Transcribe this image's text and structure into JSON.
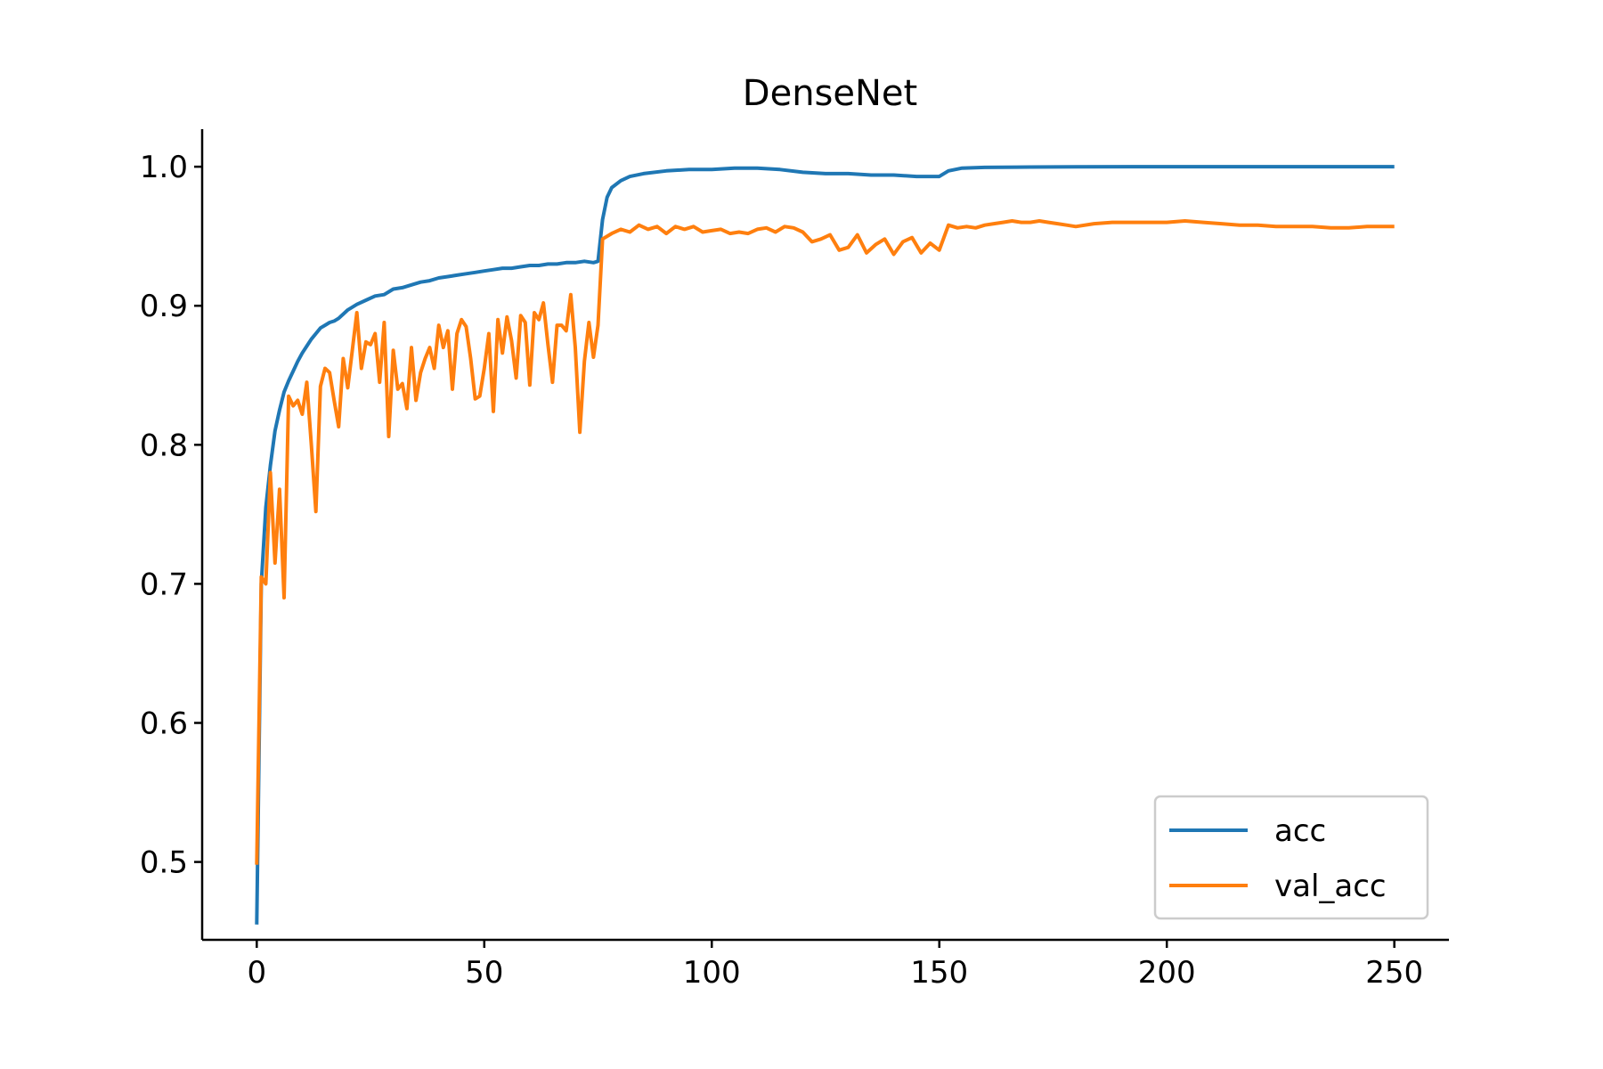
{
  "chart_data": {
    "type": "line",
    "title": "DenseNet",
    "xlabel": "",
    "ylabel": "",
    "xlim": [
      -12,
      262
    ],
    "ylim": [
      0.444,
      1.027
    ],
    "x_ticks": [
      0,
      50,
      100,
      150,
      200,
      250
    ],
    "x_tick_labels": [
      "0",
      "50",
      "100",
      "150",
      "200",
      "250"
    ],
    "y_ticks": [
      0.5,
      0.6,
      0.7,
      0.8,
      0.9,
      1.0
    ],
    "y_tick_labels": [
      "0.5",
      "0.6",
      "0.7",
      "0.8",
      "0.9",
      "1.0"
    ],
    "grid": false,
    "legend": {
      "position": "lower-right"
    },
    "series": [
      {
        "name": "acc",
        "color": "#1f77b4",
        "points": [
          [
            0,
            0.455
          ],
          [
            1,
            0.7
          ],
          [
            2,
            0.755
          ],
          [
            3,
            0.785
          ],
          [
            4,
            0.81
          ],
          [
            5,
            0.825
          ],
          [
            6,
            0.838
          ],
          [
            7,
            0.846
          ],
          [
            8,
            0.853
          ],
          [
            9,
            0.86
          ],
          [
            10,
            0.866
          ],
          [
            11,
            0.871
          ],
          [
            12,
            0.876
          ],
          [
            13,
            0.88
          ],
          [
            14,
            0.884
          ],
          [
            15,
            0.886
          ],
          [
            16,
            0.888
          ],
          [
            17,
            0.889
          ],
          [
            18,
            0.891
          ],
          [
            19,
            0.894
          ],
          [
            20,
            0.897
          ],
          [
            22,
            0.901
          ],
          [
            24,
            0.904
          ],
          [
            26,
            0.907
          ],
          [
            28,
            0.908
          ],
          [
            30,
            0.912
          ],
          [
            32,
            0.913
          ],
          [
            34,
            0.915
          ],
          [
            36,
            0.917
          ],
          [
            38,
            0.918
          ],
          [
            40,
            0.92
          ],
          [
            42,
            0.921
          ],
          [
            44,
            0.922
          ],
          [
            46,
            0.923
          ],
          [
            48,
            0.924
          ],
          [
            50,
            0.925
          ],
          [
            52,
            0.926
          ],
          [
            54,
            0.927
          ],
          [
            56,
            0.927
          ],
          [
            58,
            0.928
          ],
          [
            60,
            0.929
          ],
          [
            62,
            0.929
          ],
          [
            64,
            0.93
          ],
          [
            66,
            0.93
          ],
          [
            68,
            0.931
          ],
          [
            70,
            0.931
          ],
          [
            72,
            0.932
          ],
          [
            74,
            0.931
          ],
          [
            75,
            0.932
          ],
          [
            76,
            0.962
          ],
          [
            77,
            0.978
          ],
          [
            78,
            0.985
          ],
          [
            80,
            0.99
          ],
          [
            82,
            0.993
          ],
          [
            85,
            0.995
          ],
          [
            90,
            0.997
          ],
          [
            95,
            0.998
          ],
          [
            100,
            0.998
          ],
          [
            105,
            0.999
          ],
          [
            110,
            0.999
          ],
          [
            115,
            0.998
          ],
          [
            120,
            0.996
          ],
          [
            125,
            0.995
          ],
          [
            130,
            0.995
          ],
          [
            135,
            0.994
          ],
          [
            140,
            0.994
          ],
          [
            145,
            0.993
          ],
          [
            150,
            0.993
          ],
          [
            152,
            0.997
          ],
          [
            155,
            0.999
          ],
          [
            160,
            0.9995
          ],
          [
            170,
            0.9998
          ],
          [
            180,
            0.9999
          ],
          [
            200,
            1.0
          ],
          [
            220,
            1.0
          ],
          [
            250,
            1.0
          ]
        ]
      },
      {
        "name": "val_acc",
        "color": "#ff7f0e",
        "points": [
          [
            0,
            0.498
          ],
          [
            1,
            0.705
          ],
          [
            2,
            0.7
          ],
          [
            3,
            0.78
          ],
          [
            4,
            0.715
          ],
          [
            5,
            0.768
          ],
          [
            6,
            0.69
          ],
          [
            7,
            0.835
          ],
          [
            8,
            0.828
          ],
          [
            9,
            0.832
          ],
          [
            10,
            0.822
          ],
          [
            11,
            0.845
          ],
          [
            12,
            0.8
          ],
          [
            13,
            0.752
          ],
          [
            14,
            0.842
          ],
          [
            15,
            0.855
          ],
          [
            16,
            0.852
          ],
          [
            17,
            0.832
          ],
          [
            18,
            0.813
          ],
          [
            19,
            0.862
          ],
          [
            20,
            0.841
          ],
          [
            21,
            0.868
          ],
          [
            22,
            0.895
          ],
          [
            23,
            0.855
          ],
          [
            24,
            0.874
          ],
          [
            25,
            0.872
          ],
          [
            26,
            0.88
          ],
          [
            27,
            0.845
          ],
          [
            28,
            0.888
          ],
          [
            29,
            0.806
          ],
          [
            30,
            0.868
          ],
          [
            31,
            0.84
          ],
          [
            32,
            0.844
          ],
          [
            33,
            0.826
          ],
          [
            34,
            0.87
          ],
          [
            35,
            0.832
          ],
          [
            36,
            0.852
          ],
          [
            37,
            0.862
          ],
          [
            38,
            0.87
          ],
          [
            39,
            0.855
          ],
          [
            40,
            0.886
          ],
          [
            41,
            0.87
          ],
          [
            42,
            0.882
          ],
          [
            43,
            0.84
          ],
          [
            44,
            0.88
          ],
          [
            45,
            0.89
          ],
          [
            46,
            0.885
          ],
          [
            47,
            0.862
          ],
          [
            48,
            0.833
          ],
          [
            49,
            0.835
          ],
          [
            50,
            0.855
          ],
          [
            51,
            0.88
          ],
          [
            52,
            0.824
          ],
          [
            53,
            0.89
          ],
          [
            54,
            0.866
          ],
          [
            55,
            0.892
          ],
          [
            56,
            0.875
          ],
          [
            57,
            0.848
          ],
          [
            58,
            0.893
          ],
          [
            59,
            0.888
          ],
          [
            60,
            0.843
          ],
          [
            61,
            0.895
          ],
          [
            62,
            0.89
          ],
          [
            63,
            0.902
          ],
          [
            64,
            0.872
          ],
          [
            65,
            0.845
          ],
          [
            66,
            0.886
          ],
          [
            67,
            0.886
          ],
          [
            68,
            0.882
          ],
          [
            69,
            0.908
          ],
          [
            70,
            0.87
          ],
          [
            71,
            0.809
          ],
          [
            72,
            0.86
          ],
          [
            73,
            0.888
          ],
          [
            74,
            0.863
          ],
          [
            75,
            0.886
          ],
          [
            76,
            0.948
          ],
          [
            78,
            0.952
          ],
          [
            80,
            0.955
          ],
          [
            82,
            0.953
          ],
          [
            84,
            0.958
          ],
          [
            86,
            0.955
          ],
          [
            88,
            0.957
          ],
          [
            90,
            0.952
          ],
          [
            92,
            0.957
          ],
          [
            94,
            0.955
          ],
          [
            96,
            0.957
          ],
          [
            98,
            0.953
          ],
          [
            100,
            0.954
          ],
          [
            102,
            0.955
          ],
          [
            104,
            0.952
          ],
          [
            106,
            0.953
          ],
          [
            108,
            0.952
          ],
          [
            110,
            0.955
          ],
          [
            112,
            0.956
          ],
          [
            114,
            0.953
          ],
          [
            116,
            0.957
          ],
          [
            118,
            0.956
          ],
          [
            120,
            0.953
          ],
          [
            122,
            0.946
          ],
          [
            124,
            0.948
          ],
          [
            126,
            0.951
          ],
          [
            128,
            0.94
          ],
          [
            130,
            0.942
          ],
          [
            132,
            0.951
          ],
          [
            134,
            0.938
          ],
          [
            136,
            0.944
          ],
          [
            138,
            0.948
          ],
          [
            140,
            0.937
          ],
          [
            142,
            0.946
          ],
          [
            144,
            0.949
          ],
          [
            146,
            0.938
          ],
          [
            148,
            0.945
          ],
          [
            150,
            0.94
          ],
          [
            152,
            0.958
          ],
          [
            154,
            0.956
          ],
          [
            156,
            0.957
          ],
          [
            158,
            0.956
          ],
          [
            160,
            0.958
          ],
          [
            162,
            0.959
          ],
          [
            164,
            0.96
          ],
          [
            166,
            0.961
          ],
          [
            168,
            0.96
          ],
          [
            170,
            0.96
          ],
          [
            172,
            0.961
          ],
          [
            174,
            0.96
          ],
          [
            176,
            0.959
          ],
          [
            178,
            0.958
          ],
          [
            180,
            0.957
          ],
          [
            184,
            0.959
          ],
          [
            188,
            0.96
          ],
          [
            192,
            0.96
          ],
          [
            196,
            0.96
          ],
          [
            200,
            0.96
          ],
          [
            204,
            0.961
          ],
          [
            208,
            0.96
          ],
          [
            212,
            0.959
          ],
          [
            216,
            0.958
          ],
          [
            220,
            0.958
          ],
          [
            224,
            0.957
          ],
          [
            228,
            0.957
          ],
          [
            232,
            0.957
          ],
          [
            236,
            0.956
          ],
          [
            240,
            0.956
          ],
          [
            244,
            0.957
          ],
          [
            248,
            0.957
          ],
          [
            250,
            0.957
          ]
        ]
      }
    ]
  }
}
